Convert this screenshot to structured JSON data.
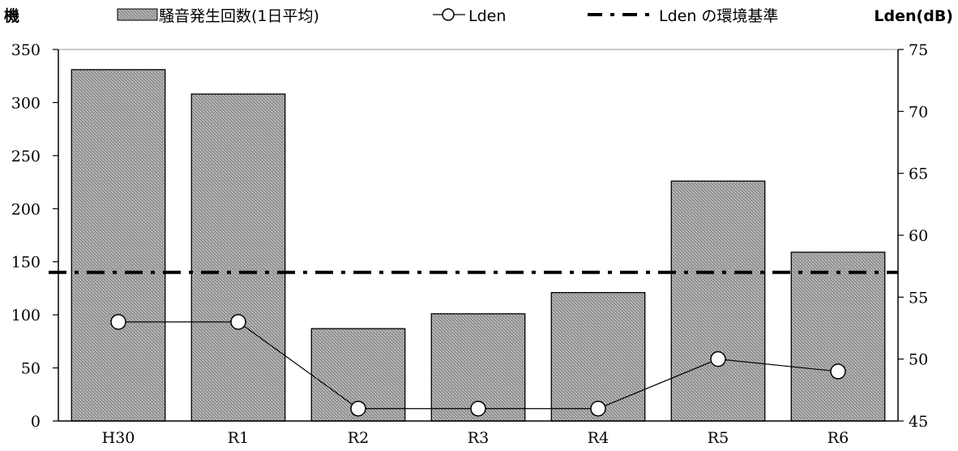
{
  "chart_data": {
    "type": "bar",
    "categories": [
      "H30",
      "R1",
      "R2",
      "R3",
      "R4",
      "R5",
      "R6"
    ],
    "series": [
      {
        "name": "騒音発生回数(1日平均)",
        "type": "bar",
        "axis": "left",
        "values": [
          331,
          308,
          87,
          101,
          121,
          226,
          159
        ]
      },
      {
        "name": "Lden",
        "type": "line",
        "axis": "right",
        "values": [
          53,
          53,
          46,
          46,
          46,
          50,
          49
        ]
      },
      {
        "name": "Lden の環境基準",
        "type": "reference-line",
        "axis": "right",
        "value": 57
      }
    ],
    "ylabel": "機",
    "y2label": "Lden(dB)",
    "ylim": [
      0,
      350
    ],
    "y2lim": [
      45,
      75
    ],
    "yticks": [
      0,
      50,
      100,
      150,
      200,
      250,
      300,
      350
    ],
    "y2ticks": [
      45,
      50,
      55,
      60,
      65,
      70,
      75
    ],
    "grid": false,
    "legend_position": "top"
  }
}
